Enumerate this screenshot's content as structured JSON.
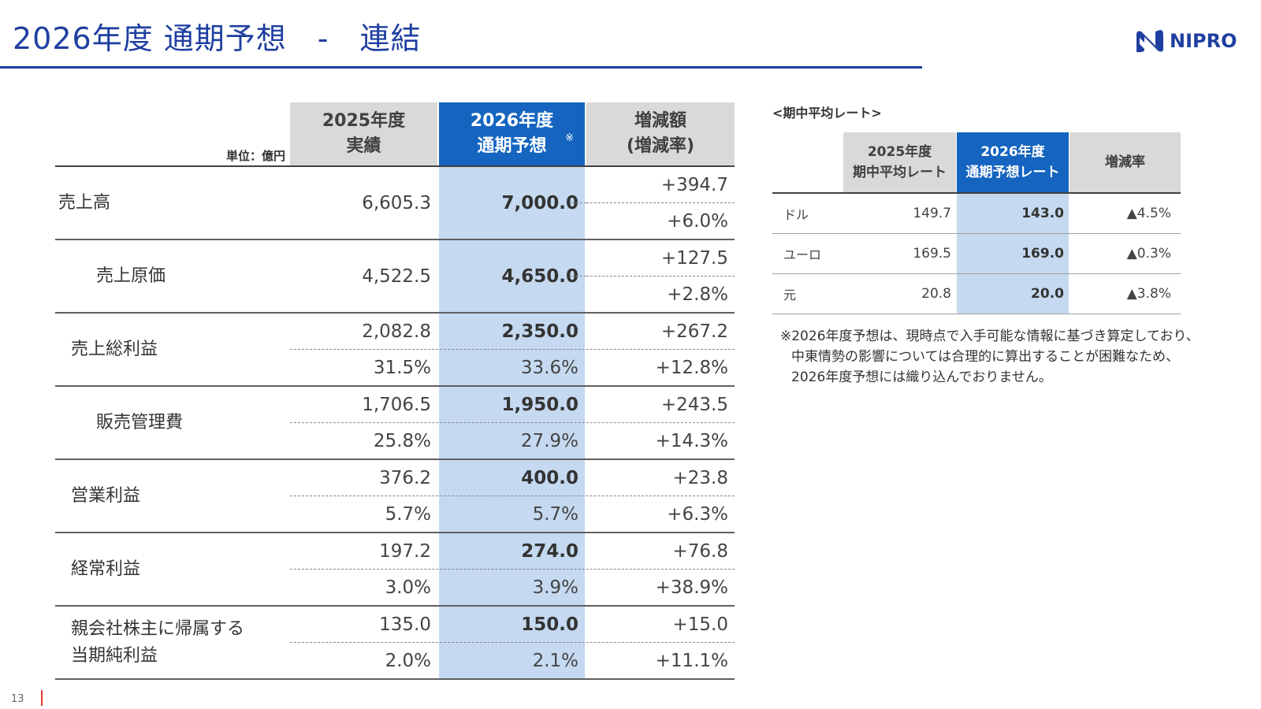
{
  "header": {
    "title": "2026年度 通期予想　-　連結",
    "logo_text": "NIPRO",
    "accent_color": "#1f3fa0",
    "logo_icon": "nipro-mark-icon"
  },
  "main_table": {
    "unit_label": "単位：億円",
    "columns": [
      {
        "line1": "2025年度",
        "line2": "実績"
      },
      {
        "line1": "2026年度",
        "line2": "通期予想",
        "note_mark": "※"
      },
      {
        "line1": "増減額",
        "line2": "(増減率)"
      }
    ],
    "rows": [
      {
        "label": "売上高",
        "indent": 0,
        "actual": "6,605.3",
        "forecast": "7,000.0",
        "change": "+394.7",
        "change_rate": "+6.0%"
      },
      {
        "label": "売上原価",
        "indent": 2,
        "actual": "4,522.5",
        "forecast": "4,650.0",
        "change": "+127.5",
        "change_rate": "+2.8%"
      },
      {
        "label": "売上総利益",
        "indent": 1,
        "actual": "2,082.8",
        "actual_ratio": "31.5%",
        "forecast": "2,350.0",
        "forecast_ratio": "33.6%",
        "change": "+267.2",
        "change_rate": "+12.8%"
      },
      {
        "label": "販売管理費",
        "indent": 2,
        "actual": "1,706.5",
        "actual_ratio": "25.8%",
        "forecast": "1,950.0",
        "forecast_ratio": "27.9%",
        "change": "+243.5",
        "change_rate": "+14.3%"
      },
      {
        "label": "営業利益",
        "indent": 1,
        "actual": "376.2",
        "actual_ratio": "5.7%",
        "forecast": "400.0",
        "forecast_ratio": "5.7%",
        "change": "+23.8",
        "change_rate": "+6.3%"
      },
      {
        "label": "経常利益",
        "indent": 1,
        "actual": "197.2",
        "actual_ratio": "3.0%",
        "forecast": "274.0",
        "forecast_ratio": "3.9%",
        "change": "+76.8",
        "change_rate": "+38.9%"
      },
      {
        "label_line1": "親会社株主に帰属する",
        "label_line2": "当期純利益",
        "indent": 1,
        "actual": "135.0",
        "actual_ratio": "2.0%",
        "forecast": "150.0",
        "forecast_ratio": "2.1%",
        "change": "+15.0",
        "change_rate": "+11.1%"
      }
    ]
  },
  "rate_table": {
    "caption": "<期中平均レート>",
    "columns": [
      {
        "line1": "2025年度",
        "line2": "期中平均レート"
      },
      {
        "line1": "2026年度",
        "line2": "通期予想レート"
      },
      {
        "line1": "増減率"
      }
    ],
    "rows": [
      {
        "currency": "ドル",
        "prev": "149.7",
        "forecast": "143.0",
        "change": "▲4.5%"
      },
      {
        "currency": "ユーロ",
        "prev": "169.5",
        "forecast": "169.0",
        "change": "▲0.3%"
      },
      {
        "currency": "元",
        "prev": "20.8",
        "forecast": "20.0",
        "change": "▲3.8%"
      }
    ]
  },
  "footnote": {
    "line1": "※2026年度予想は、現時点で入手可能な情報に基づき算定しており、",
    "line2": "中東情勢の影響については合理的に算出することが困難なため、",
    "line3": "2026年度予想には織り込んでおりません。"
  },
  "page": {
    "number": "13"
  },
  "colors": {
    "header_blue": "#1565c0",
    "forecast_col_bg": "#c5d9f0",
    "header_gray": "#d9d9d9",
    "page_mark": "#e53935"
  }
}
